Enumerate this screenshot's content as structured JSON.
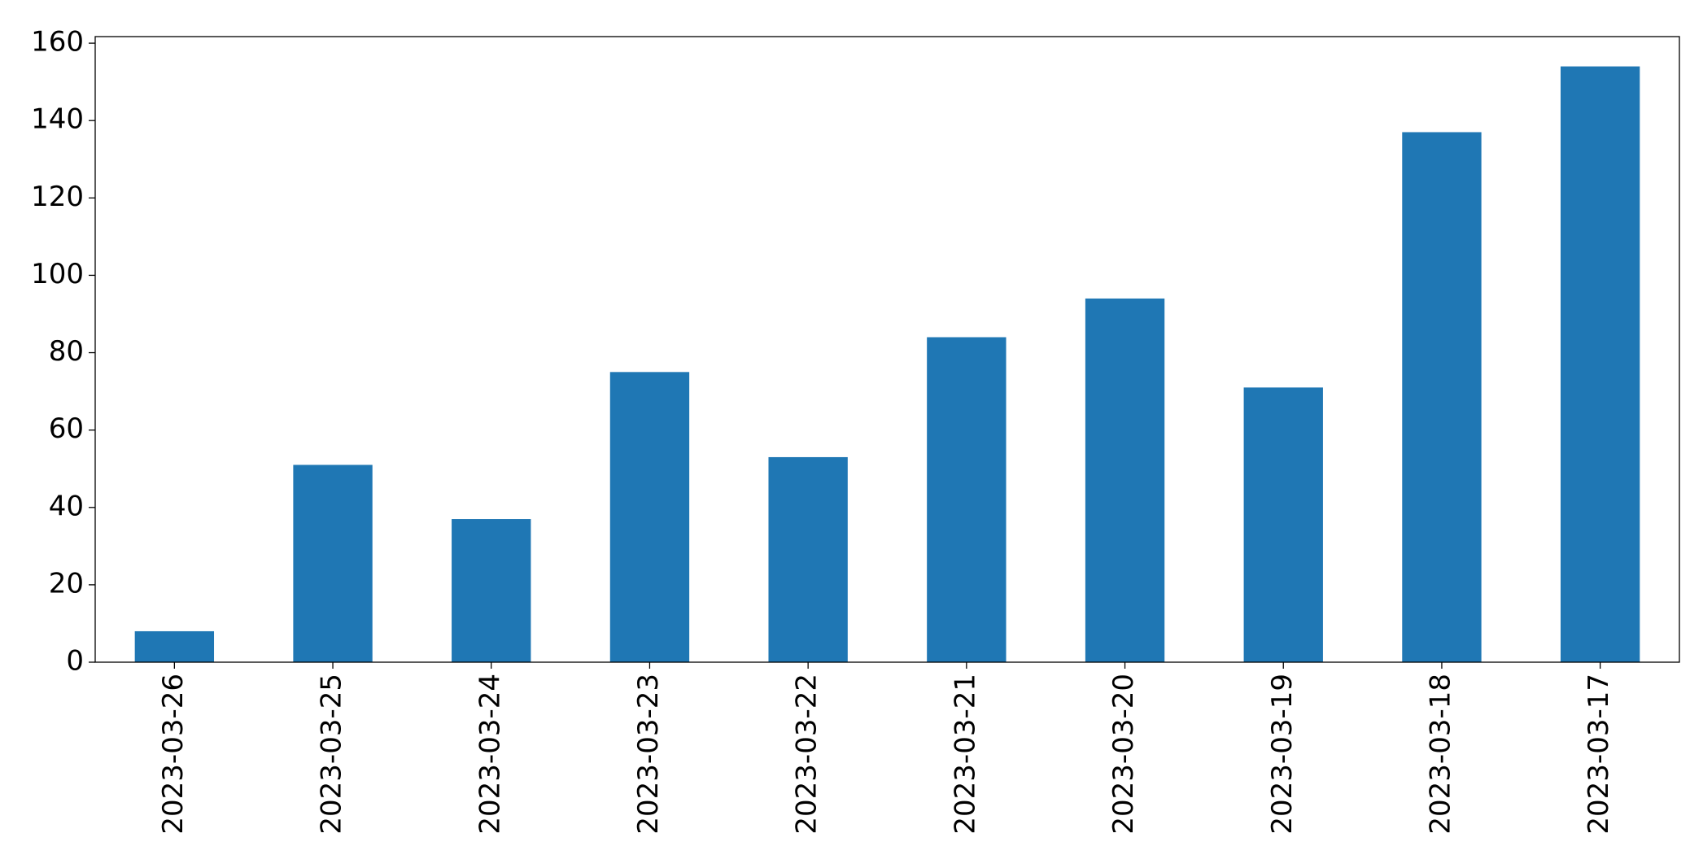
{
  "chart_data": {
    "type": "bar",
    "categories": [
      "2023-03-26",
      "2023-03-25",
      "2023-03-24",
      "2023-03-23",
      "2023-03-22",
      "2023-03-21",
      "2023-03-20",
      "2023-03-19",
      "2023-03-18",
      "2023-03-17"
    ],
    "values": [
      8,
      51,
      37,
      75,
      53,
      84,
      94,
      71,
      137,
      154
    ],
    "color": "#1f77b4",
    "ylim": [
      0,
      161.7
    ],
    "yticks": [
      0,
      20,
      40,
      60,
      80,
      100,
      120,
      140,
      160
    ],
    "grid": false
  }
}
